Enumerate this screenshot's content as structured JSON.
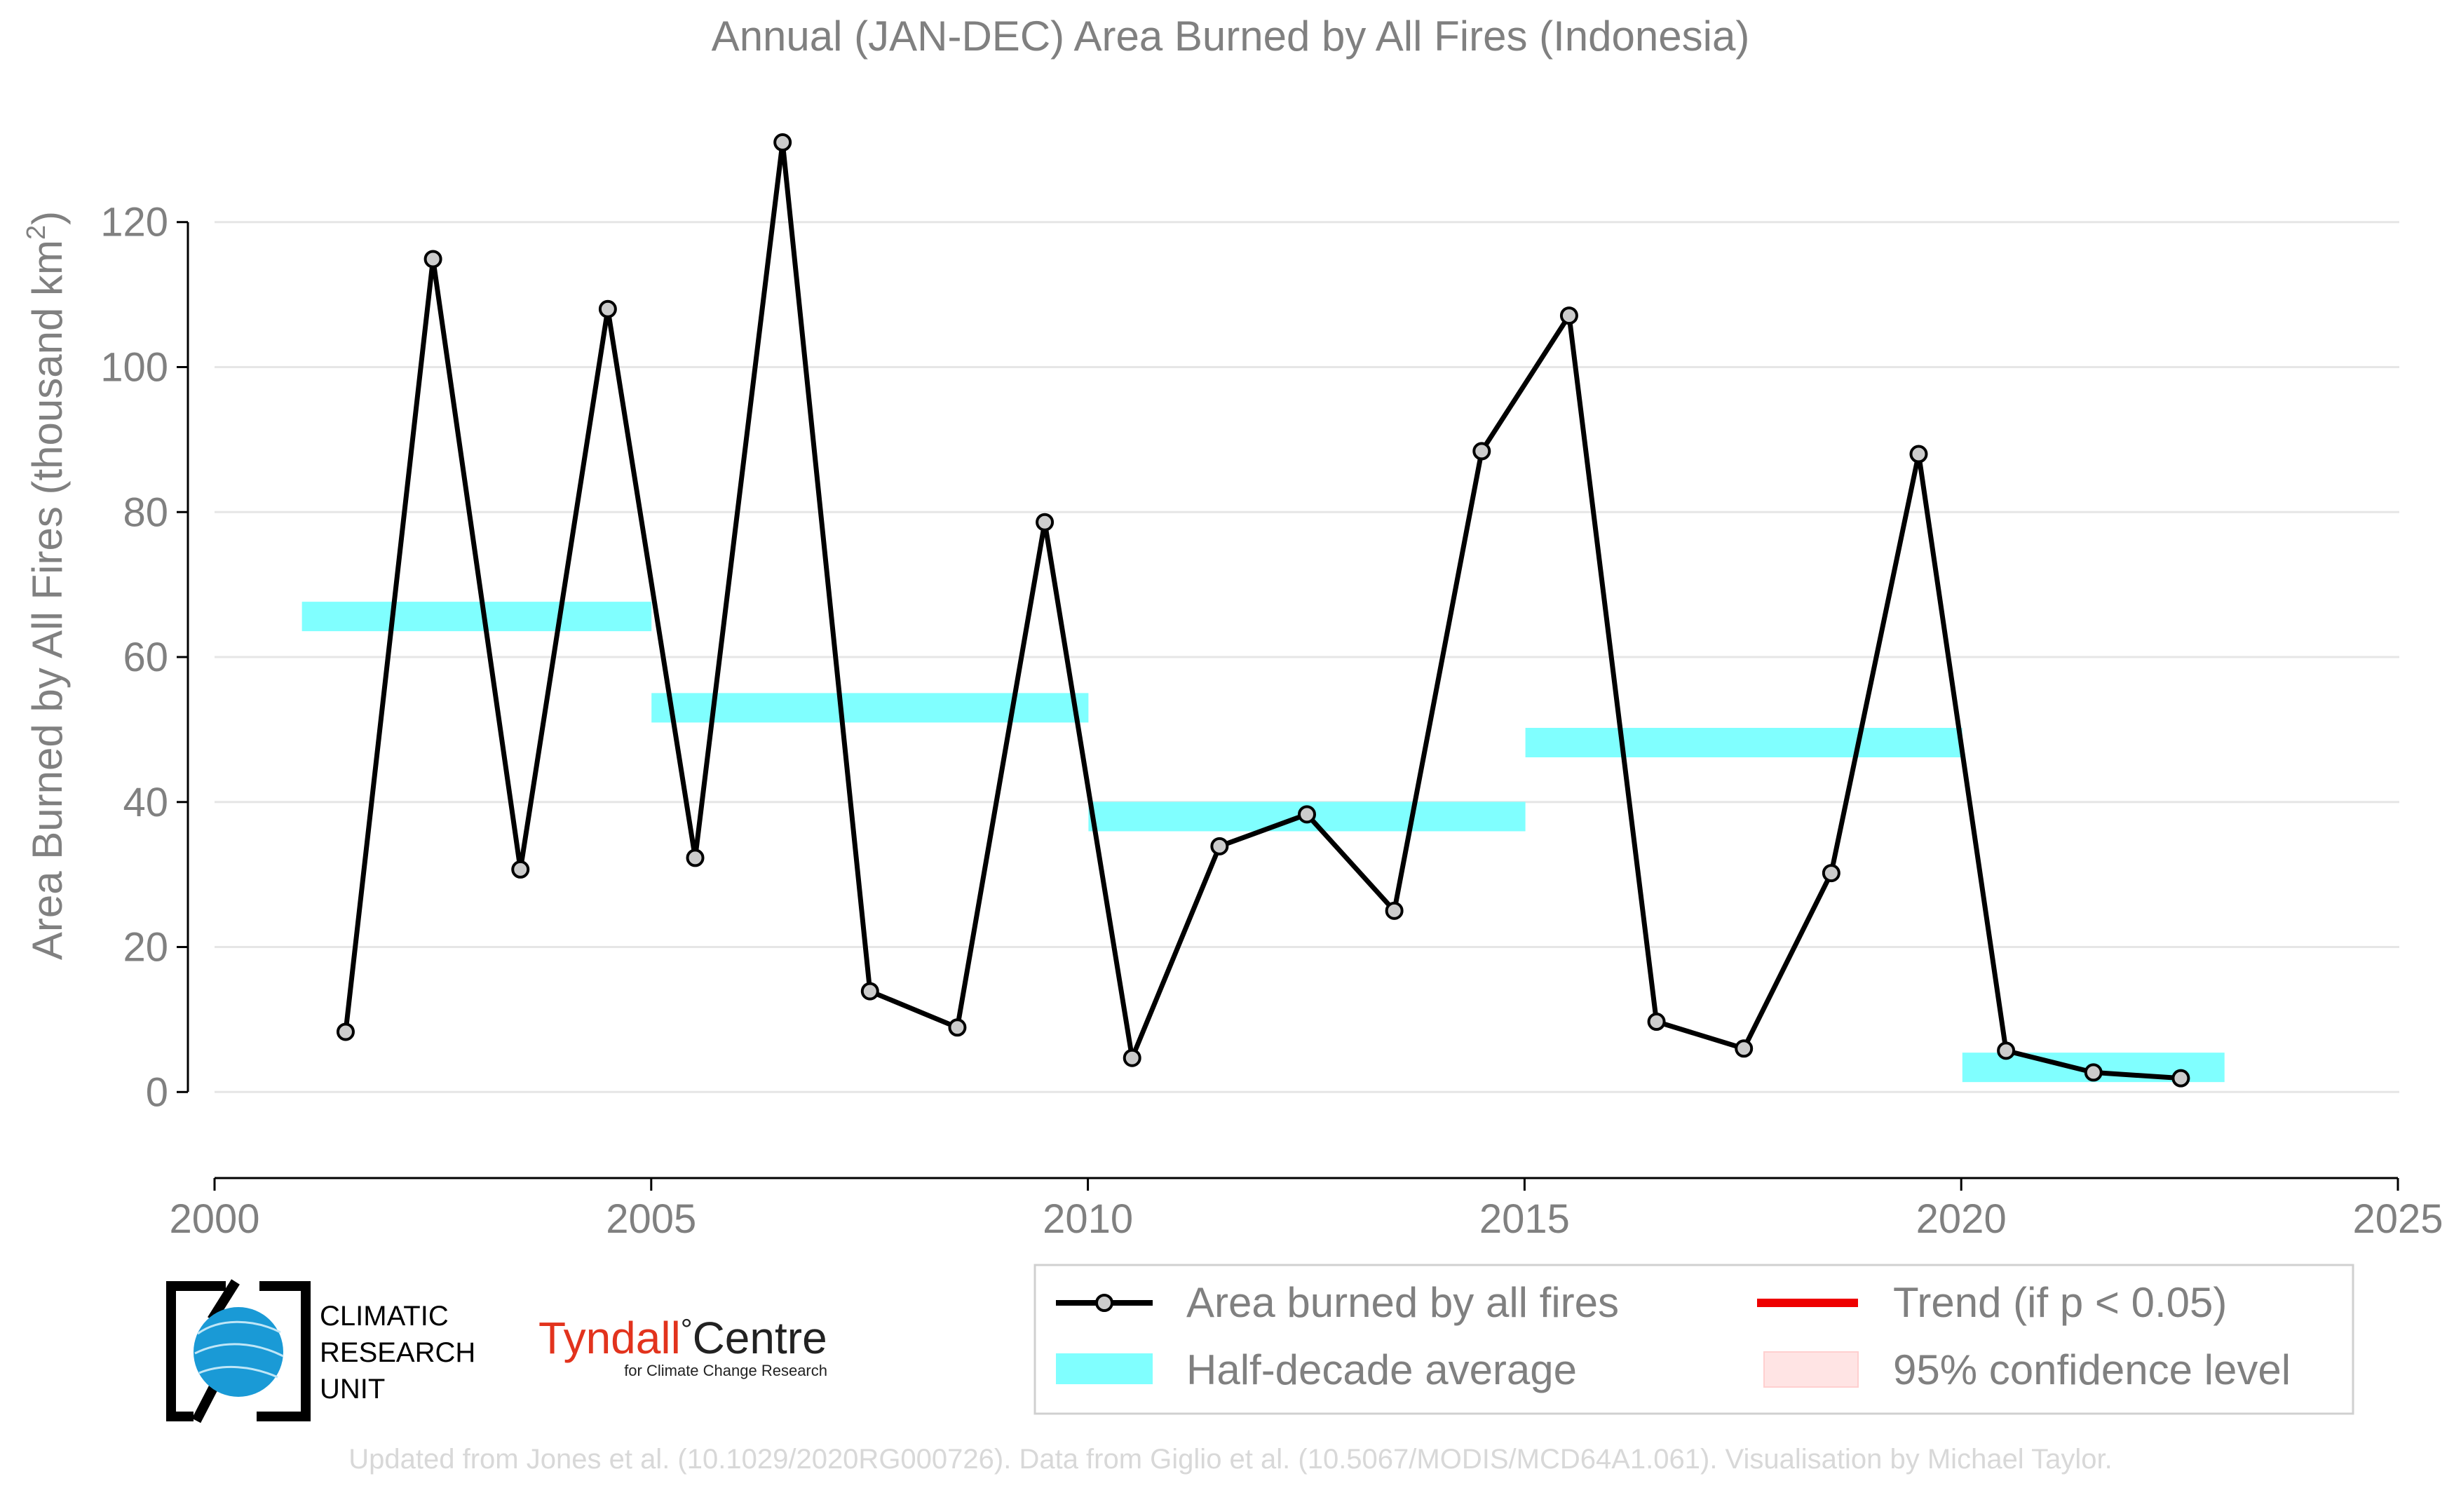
{
  "chart_data": {
    "type": "line",
    "title": "Annual (JAN-DEC) Area Burned by All Fires (Indonesia)",
    "ylabel_main": "Area Burned by All Fires (thousand km",
    "ylabel_sup": "2",
    "ylabel_close": ")",
    "xlim": [
      2000,
      2025
    ],
    "ylim": [
      -8,
      134
    ],
    "x_ticks": [
      2000,
      2005,
      2010,
      2015,
      2020,
      2025
    ],
    "y_ticks": [
      0,
      20,
      40,
      60,
      80,
      100,
      120
    ],
    "grid": "horizontal",
    "series": [
      {
        "name": "Area burned by all fires",
        "color": "#000000",
        "marker_fill": "#cccccc",
        "x": [
          2001.5,
          2002.5,
          2003.5,
          2004.5,
          2005.5,
          2006.5,
          2007.5,
          2008.5,
          2009.5,
          2010.5,
          2011.5,
          2012.5,
          2013.5,
          2014.5,
          2015.5,
          2016.5,
          2017.5,
          2018.5,
          2019.5,
          2020.5,
          2021.5,
          2022.5
        ],
        "values": [
          8.3,
          114.9,
          30.7,
          108.0,
          32.3,
          131.0,
          13.9,
          8.9,
          78.6,
          4.7,
          33.9,
          38.3,
          25.0,
          88.4,
          107.1,
          9.7,
          6.0,
          30.2,
          88.0,
          5.7,
          2.7,
          1.9
        ]
      }
    ],
    "half_decade_averages": {
      "name": "Half-decade average",
      "color": "#80ffff",
      "bars": [
        {
          "x_start": 2001,
          "x_end": 2005,
          "value": 65.6
        },
        {
          "x_start": 2005,
          "x_end": 2010,
          "value": 53.0
        },
        {
          "x_start": 2010,
          "x_end": 2015,
          "value": 38.0
        },
        {
          "x_start": 2015,
          "x_end": 2020,
          "value": 48.2
        },
        {
          "x_start": 2020,
          "x_end": 2023,
          "value": 3.4
        }
      ]
    },
    "legend": {
      "placement": "bottom-right",
      "items": [
        {
          "label": "Area burned by all fires",
          "type": "line-marker",
          "color": "#000000"
        },
        {
          "label": "Trend (if p < 0.05)",
          "type": "line",
          "color": "#ee0000"
        },
        {
          "label": "Half-decade average",
          "type": "band",
          "color": "#80ffff"
        },
        {
          "label": "95% confidence level",
          "type": "band",
          "color": "#ffe4e4"
        }
      ]
    }
  },
  "logos": {
    "cru_lines": [
      "CLIMATIC",
      "RESEARCH",
      "UNIT"
    ],
    "tyndall_main": "Tyndall",
    "tyndall_degree": "°",
    "tyndall_centre": "Centre",
    "tyndall_sub": "for Climate Change Research"
  },
  "footer": "Updated from Jones et al. (10.1029/2020RG000726). Data from Giglio et al. (10.5067/MODIS/MCD64A1.061). Visualisation by Michael Taylor.",
  "colors": {
    "axis_text": "#808080",
    "grid": "#e6e6e6",
    "footer_text": "#d8d8d8",
    "cru_blue": "#1a9ad6",
    "tyndall_red": "#e2331d"
  }
}
